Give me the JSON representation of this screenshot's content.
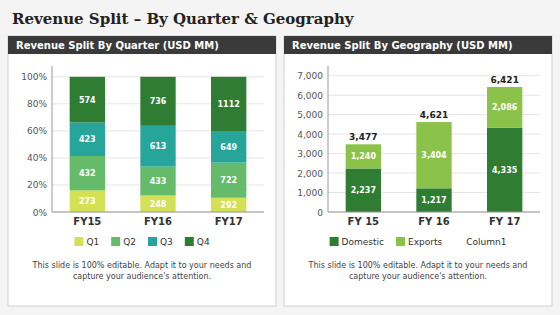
{
  "title": "Revenue Split – By Quarter & Geography",
  "chart_data": [
    {
      "type": "bar",
      "title": "Revenue Split By Quarter (USD MM)",
      "subtitle": "This slide is 100% editable. Adapt it to your needs and\ncapture your audience's attention.",
      "categories": [
        "FY15",
        "FY16",
        "FY17"
      ],
      "series": [
        {
          "name": "Q1",
          "color": "#d4e157",
          "values": [
            16.04,
            12.22,
            10.52
          ],
          "amounts": [
            273,
            248,
            292
          ]
        },
        {
          "name": "Q2",
          "color": "#66bb6a",
          "values": [
            25.38,
            21.33,
            26.02
          ],
          "amounts": [
            432,
            433,
            722
          ]
        },
        {
          "name": "Q3",
          "color": "#26a69a",
          "values": [
            24.85,
            30.2,
            23.39
          ],
          "amounts": [
            423,
            613,
            649
          ]
        },
        {
          "name": "Q4",
          "color": "#2e7d32",
          "values": [
            33.73,
            36.26,
            40.07
          ],
          "amounts": [
            574,
            736,
            1112
          ]
        }
      ],
      "stacked": true,
      "ylim": [
        0,
        108
      ],
      "yticks": [
        {
          "value": 0,
          "label": "0%"
        },
        {
          "value": 20,
          "label": "20%"
        },
        {
          "value": 40,
          "label": "40%"
        },
        {
          "value": 60,
          "label": "60%"
        },
        {
          "value": 80,
          "label": "80%"
        },
        {
          "value": 100,
          "label": "100%"
        }
      ],
      "grid": true,
      "legend": "bottom"
    },
    {
      "type": "bar",
      "title": "Revenue Split By Geography (USD MM)",
      "subtitle": "This slide is 100% editable. Adapt it to your needs and\ncapture your audience's attention.",
      "categories": [
        "FY 15",
        "FY 16",
        "FY 17"
      ],
      "series": [
        {
          "name": "Domestic",
          "color": "#2e7d32",
          "values": [
            2237,
            1217,
            4335
          ],
          "value_labels": [
            "2,237",
            "1,217",
            "4,335"
          ]
        },
        {
          "name": "Exports",
          "color": "#8bc34a",
          "values": [
            1240,
            3404,
            2086
          ],
          "value_labels": [
            "1,240",
            "3,404",
            "2,086"
          ]
        },
        {
          "name": "Column1",
          "color": "#ffffff",
          "values": [
            null,
            null,
            null
          ]
        }
      ],
      "totals": [
        3477,
        4621,
        6421
      ],
      "total_labels": [
        "3,477",
        "4,621",
        "6,421"
      ],
      "stacked": true,
      "data_labels": true,
      "ylim": [
        0,
        7500
      ],
      "yticks": [
        0,
        {
          "value": 1000,
          "label": "1,000"
        },
        {
          "value": 2000,
          "label": "2,000"
        },
        {
          "value": 3000,
          "label": "3,000"
        },
        {
          "value": 4000,
          "label": "4,000"
        },
        {
          "value": 5000,
          "label": "5,000"
        },
        {
          "value": 6000,
          "label": "6,000"
        },
        {
          "value": 7000,
          "label": "7,000"
        }
      ],
      "grid": true,
      "legend": "bottom"
    }
  ]
}
